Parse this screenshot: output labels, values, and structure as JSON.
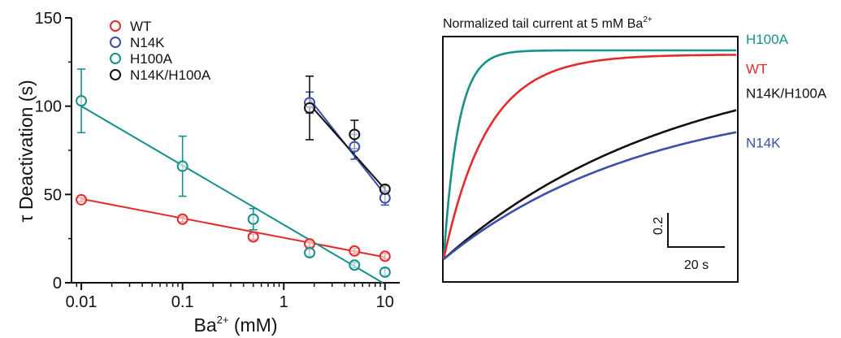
{
  "chart_data": [
    {
      "type": "scatter",
      "title": "",
      "xlabel": "Ba",
      "xlabel_sup": "2+",
      "xlabel_unit": " (mM)",
      "ylabel": "τ Deactivation (s)",
      "xscale": "log",
      "xlim": [
        0.008,
        14
      ],
      "ylim": [
        0,
        150
      ],
      "x_ticks": [
        {
          "value": 0.01,
          "label": "0.01"
        },
        {
          "value": 0.1,
          "label": "0.1"
        },
        {
          "value": 1,
          "label": "1"
        },
        {
          "value": 10,
          "label": "10"
        }
      ],
      "y_ticks": [
        {
          "value": 0,
          "label": "0"
        },
        {
          "value": 50,
          "label": "50"
        },
        {
          "value": 100,
          "label": "100"
        },
        {
          "value": 150,
          "label": "150"
        }
      ],
      "legend_position": "top-left",
      "grid": false,
      "series": [
        {
          "name": "WT",
          "color": "#e32b2b",
          "x": [
            0.01,
            0.1,
            0.5,
            1.8,
            5,
            10
          ],
          "y": [
            47,
            36,
            26,
            22,
            18,
            15
          ],
          "err": [
            1,
            1.5,
            1.5,
            1.5,
            1.5,
            1.5
          ],
          "fit": [
            [
              0.01,
              47.5
            ],
            [
              10,
              14.5
            ]
          ]
        },
        {
          "name": "N14K",
          "color": "#3a4fa8",
          "x": [
            1.8,
            5,
            10
          ],
          "y": [
            102,
            77,
            48
          ],
          "err": [
            6,
            7,
            4
          ],
          "fit": [
            [
              1.8,
              104
            ],
            [
              10,
              50
            ]
          ]
        },
        {
          "name": "H100A",
          "color": "#16908a",
          "x": [
            0.01,
            0.1,
            0.5,
            1.8,
            5,
            10
          ],
          "y": [
            103,
            66,
            36,
            17,
            10,
            6
          ],
          "err": [
            18,
            17,
            6,
            2,
            1.5,
            2
          ],
          "fit": [
            [
              0.01,
              100
            ],
            [
              9.5,
              0
            ]
          ]
        },
        {
          "name": "N14K/H100A",
          "color": "#111111",
          "x": [
            1.8,
            5,
            10
          ],
          "y": [
            99,
            84,
            53
          ],
          "err": [
            18,
            8,
            2
          ],
          "fit": [
            [
              1.8,
              101
            ],
            [
              10,
              53
            ]
          ]
        }
      ]
    },
    {
      "type": "line",
      "title": "Normalized tail current at 5 mM Ba",
      "title_sup": "2+",
      "scale_bar": {
        "y_value": 0.2,
        "y_label": "0.2",
        "x_value": 20,
        "x_label": "20 s"
      },
      "series": [
        {
          "name": "H100A",
          "color": "#16908a",
          "tau_s": 5,
          "final": 1.0
        },
        {
          "name": "WT",
          "color": "#e32b2b",
          "tau_s": 15,
          "final": 0.98
        },
        {
          "name": "N14K/H100A",
          "color": "#111111",
          "tau_s": 80,
          "final": 1.0
        },
        {
          "name": "N14K",
          "color": "#3a4fa8",
          "tau_s": 70,
          "final": 0.8
        }
      ]
    }
  ]
}
